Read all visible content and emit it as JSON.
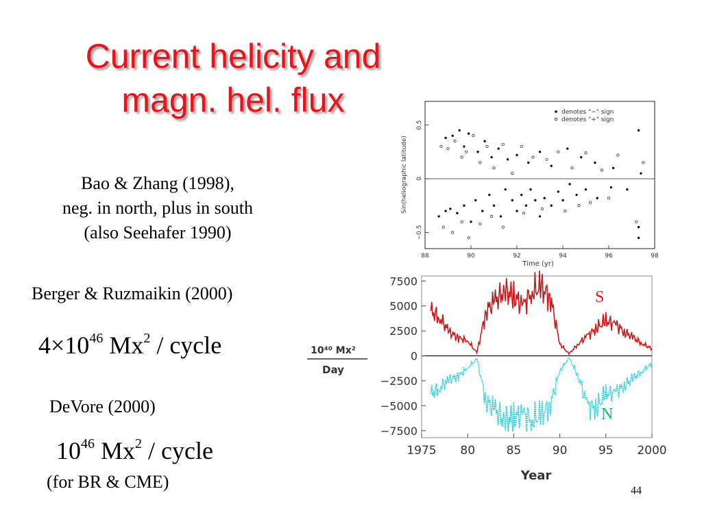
{
  "slide": {
    "title_line1": "Current helicity and",
    "title_line2": "magn. hel. flux",
    "bao_line1": "Bao & Zhang (1998),",
    "bao_line2": "neg. in north, plus in south",
    "bao_line3": "(also Seehafer 1990)",
    "berger": "Berger & Ruzmaikin (2000)",
    "formula1": {
      "coef": "4×10",
      "exp": "46",
      "unit": "Mx",
      "unit_exp": "2",
      "rest": " / cycle"
    },
    "devore": "DeVore (2000)",
    "formula2": {
      "coef": "10",
      "exp": "46",
      "unit": "Mx",
      "unit_exp": "2",
      "rest": " / cycle"
    },
    "devore_note": "(for BR & CME)",
    "slide_number": "44"
  },
  "chart_data": [
    {
      "type": "scatter",
      "xlabel": "Time (yr)",
      "ylabel": "Sin(heliographic latitude)",
      "xlim": [
        88,
        98
      ],
      "ylim": [
        -0.65,
        0.72
      ],
      "xticks": [
        "88",
        "90",
        "92",
        "94",
        "96",
        "98"
      ],
      "yticks": [
        "0.5",
        "0",
        "−0.5"
      ],
      "legend_position": "top-right",
      "legend": [
        "denotes \"−\" sign",
        "denotes \"+\" sign"
      ],
      "series": [
        {
          "name": "denotes \"−\" sign",
          "marker": "filled",
          "points": [
            [
              88.9,
              0.38
            ],
            [
              89.2,
              0.4
            ],
            [
              89.5,
              0.45
            ],
            [
              89.7,
              0.3
            ],
            [
              89.9,
              0.42
            ],
            [
              90.3,
              0.25
            ],
            [
              90.6,
              0.35
            ],
            [
              90.9,
              0.2
            ],
            [
              91.2,
              0.28
            ],
            [
              91.6,
              0.18
            ],
            [
              92.0,
              0.22
            ],
            [
              92.5,
              0.15
            ],
            [
              93.0,
              0.25
            ],
            [
              93.5,
              0.12
            ],
            [
              94.2,
              0.28
            ],
            [
              94.8,
              0.2
            ],
            [
              95.4,
              0.15
            ],
            [
              96.2,
              0.1
            ],
            [
              97.3,
              0.45
            ],
            [
              97.4,
              0.05
            ],
            [
              88.6,
              -0.35
            ],
            [
              88.9,
              -0.3
            ],
            [
              89.1,
              -0.28
            ],
            [
              89.4,
              -0.32
            ],
            [
              89.7,
              -0.25
            ],
            [
              90.0,
              -0.4
            ],
            [
              90.2,
              -0.2
            ],
            [
              90.5,
              -0.3
            ],
            [
              90.8,
              -0.15
            ],
            [
              91.0,
              -0.25
            ],
            [
              91.3,
              -0.35
            ],
            [
              91.5,
              -0.1
            ],
            [
              91.8,
              -0.2
            ],
            [
              92.0,
              -0.3
            ],
            [
              92.2,
              -0.15
            ],
            [
              92.4,
              -0.25
            ],
            [
              92.6,
              -0.1
            ],
            [
              92.8,
              -0.2
            ],
            [
              93.0,
              -0.35
            ],
            [
              93.2,
              -0.18
            ],
            [
              93.5,
              -0.25
            ],
            [
              93.8,
              -0.12
            ],
            [
              94.0,
              -0.2
            ],
            [
              94.3,
              -0.05
            ],
            [
              94.6,
              -0.15
            ],
            [
              95.0,
              -0.1
            ],
            [
              95.5,
              -0.18
            ],
            [
              96.1,
              -0.08
            ],
            [
              96.8,
              -0.1
            ],
            [
              97.3,
              -0.45
            ],
            [
              97.3,
              -0.55
            ]
          ]
        },
        {
          "name": "denotes \"+\" sign",
          "marker": "open",
          "points": [
            [
              88.7,
              0.3
            ],
            [
              89.0,
              0.28
            ],
            [
              89.3,
              0.35
            ],
            [
              89.6,
              0.2
            ],
            [
              89.8,
              0.25
            ],
            [
              90.1,
              0.4
            ],
            [
              90.4,
              0.15
            ],
            [
              90.7,
              0.3
            ],
            [
              91.0,
              0.1
            ],
            [
              91.4,
              0.32
            ],
            [
              91.8,
              0.05
            ],
            [
              92.2,
              0.3
            ],
            [
              92.7,
              0.2
            ],
            [
              93.3,
              0.18
            ],
            [
              93.8,
              0.25
            ],
            [
              94.4,
              0.1
            ],
            [
              95.0,
              0.24
            ],
            [
              95.7,
              0.08
            ],
            [
              96.4,
              0.22
            ],
            [
              97.5,
              0.15
            ],
            [
              88.8,
              -0.45
            ],
            [
              89.2,
              -0.5
            ],
            [
              89.6,
              -0.4
            ],
            [
              89.9,
              -0.55
            ],
            [
              90.4,
              -0.42
            ],
            [
              90.9,
              -0.35
            ],
            [
              91.4,
              -0.45
            ],
            [
              92.3,
              -0.32
            ],
            [
              93.1,
              -0.28
            ],
            [
              94.1,
              -0.3
            ],
            [
              94.7,
              -0.25
            ],
            [
              95.2,
              -0.22
            ],
            [
              96.0,
              -0.18
            ],
            [
              97.2,
              -0.4
            ]
          ]
        }
      ]
    },
    {
      "type": "line",
      "xlabel": "Year",
      "ylabel_numerator": "10⁴⁰ Mx²",
      "ylabel_denominator": "Day",
      "xlim": [
        1975,
        2000
      ],
      "ylim": [
        -8200,
        8000
      ],
      "xticks": [
        "1975",
        "80",
        "85",
        "90",
        "95",
        "2000"
      ],
      "yticks": [
        "7500",
        "5000",
        "2500",
        "0",
        "−2500",
        "−5000",
        "−7500"
      ],
      "colors": {
        "S": "#cc1a1a",
        "N": "#1fd0e0"
      },
      "series": [
        {
          "name": "S",
          "label_color": "#e8141b",
          "x": [
            1976,
            1977,
            1978,
            1979,
            1980,
            1981,
            1982,
            1983,
            1984,
            1985,
            1986,
            1987,
            1988,
            1989,
            1990,
            1991,
            1992,
            1993,
            1994,
            1995,
            1996,
            1997,
            1998,
            1999,
            2000
          ],
          "values": [
            4500,
            3800,
            2400,
            1800,
            1500,
            300,
            4500,
            5500,
            6500,
            6000,
            5000,
            6500,
            6800,
            5800,
            1200,
            200,
            1200,
            2000,
            2800,
            3500,
            3200,
            2400,
            1800,
            1200,
            700
          ]
        },
        {
          "name": "N",
          "label_color": "#11b87a",
          "x": [
            1976,
            1977,
            1978,
            1979,
            1980,
            1981,
            1982,
            1983,
            1984,
            1985,
            1986,
            1987,
            1988,
            1989,
            1990,
            1991,
            1992,
            1993,
            1994,
            1995,
            1996,
            1997,
            1998,
            1999,
            2000
          ],
          "values": [
            -3800,
            -3200,
            -2400,
            -2000,
            -1200,
            -300,
            -4500,
            -5500,
            -6500,
            -6200,
            -5800,
            -6400,
            -6000,
            -4800,
            -1500,
            -200,
            -2000,
            -5000,
            -5200,
            -3800,
            -3600,
            -3000,
            -2200,
            -1500,
            -800
          ]
        }
      ]
    }
  ]
}
